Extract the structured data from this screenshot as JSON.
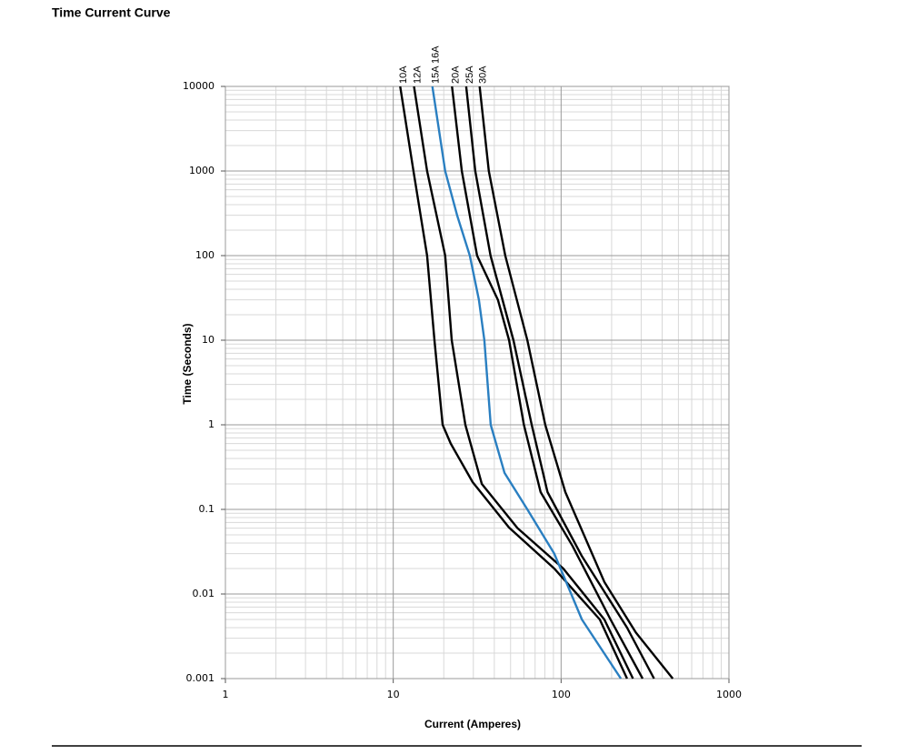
{
  "chart_data": {
    "type": "line",
    "title": "Time Current Curve",
    "x_label": "Current  (Amperes)",
    "y_label": "Time (Seconds)",
    "log_x": true,
    "log_y": true,
    "grid": true,
    "xlim": [
      1,
      1000
    ],
    "xticks": [
      1,
      10,
      100,
      1000
    ],
    "ylim": [
      0.001,
      10000
    ],
    "yticks": [
      0.001,
      0.01,
      0.1,
      1,
      10,
      100,
      1000,
      10000
    ],
    "series": [
      {
        "name": "10A",
        "color": "#000000",
        "x": [
          11,
          13.2,
          15.9,
          17.6,
          19.7,
          22,
          29.7,
          49,
          91,
          170,
          247
        ],
        "values": [
          10000,
          1000,
          100,
          10,
          1,
          0.6,
          0.21,
          0.061,
          0.02,
          0.005,
          0.001
        ]
      },
      {
        "name": "12A",
        "color": "#000000",
        "x": [
          13.3,
          15.9,
          20.4,
          22.3,
          26.9,
          33.7,
          55,
          103,
          181,
          268
        ],
        "values": [
          10000,
          1000,
          100,
          10,
          1,
          0.2,
          0.06,
          0.02,
          0.005,
          0.001
        ]
      },
      {
        "name": "15A 16A",
        "color": "#2a7fc1",
        "x": [
          17.1,
          20.4,
          24,
          28.6,
          32.4,
          34.9,
          38.1,
          46,
          62.9,
          91,
          133,
          227
        ],
        "values": [
          10000,
          1000,
          300,
          100,
          30,
          10,
          1,
          0.27,
          0.1,
          0.03,
          0.005,
          0.001
        ]
      },
      {
        "name": "20A",
        "color": "#000000",
        "x": [
          22.4,
          25.6,
          31.6,
          42,
          49,
          60,
          75.5,
          117,
          197,
          306
        ],
        "values": [
          10000,
          1000,
          100,
          30,
          10,
          1,
          0.16,
          0.037,
          0.005,
          0.001
        ]
      },
      {
        "name": "25A",
        "color": "#000000",
        "x": [
          27.2,
          30.8,
          38,
          52,
          66.8,
          83,
          133,
          247,
          358
        ],
        "values": [
          10000,
          1000,
          100,
          10,
          1,
          0.16,
          0.028,
          0.004,
          0.001
        ]
      },
      {
        "name": "30A",
        "color": "#000000",
        "x": [
          32.7,
          37.1,
          46.5,
          62.9,
          80.5,
          106,
          181,
          279,
          463
        ],
        "values": [
          10000,
          1000,
          100,
          10,
          1,
          0.16,
          0.0139,
          0.0035,
          0.001
        ]
      }
    ]
  }
}
